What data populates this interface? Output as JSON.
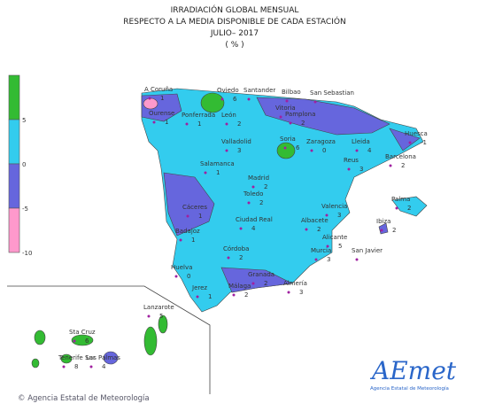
{
  "header": {
    "lines": [
      "IRRADIACIÓN GLOBAL MENSUAL",
      "RESPECTO A LA MEDIA DISPONIBLE DE CADA ESTACIÓN",
      "JULIO– 2017",
      "( % )"
    ]
  },
  "legend": {
    "ticks": [
      5,
      0,
      -5,
      -10
    ]
  },
  "stations": [
    {
      "name": "A Coruña",
      "value": 1
    },
    {
      "name": "Oviedo",
      "value": 6
    },
    {
      "name": "Santander"
    },
    {
      "name": "Bilbao"
    },
    {
      "name": "San Sebastian"
    },
    {
      "name": "Ourense",
      "value": 1
    },
    {
      "name": "Ponferrada",
      "value": 1
    },
    {
      "name": "León",
      "value": 2
    },
    {
      "name": "Vitoria"
    },
    {
      "name": "Pamplona",
      "value": 2
    },
    {
      "name": "Huesca",
      "value": -1
    },
    {
      "name": "Valladolid",
      "value": 3
    },
    {
      "name": "Soria",
      "value": 6
    },
    {
      "name": "Zaragoza",
      "value": 0
    },
    {
      "name": "Lleida",
      "value": 4
    },
    {
      "name": "Barcelona",
      "value": 2
    },
    {
      "name": "Reus",
      "value": 3
    },
    {
      "name": "Salamanca",
      "value": 1
    },
    {
      "name": "Madrid",
      "value": 2
    },
    {
      "name": "Toledo",
      "value": 2
    },
    {
      "name": "Cáceres",
      "value": 1
    },
    {
      "name": "Ciudad Real",
      "value": 4
    },
    {
      "name": "Albacete",
      "value": 2
    },
    {
      "name": "Valencia",
      "value": 3
    },
    {
      "name": "Palma",
      "value": 2
    },
    {
      "name": "Ibiza",
      "value": 2
    },
    {
      "name": "Badajoz",
      "value": 1
    },
    {
      "name": "Alicante",
      "value": 5
    },
    {
      "name": "Murcia",
      "value": 3
    },
    {
      "name": "San Javier"
    },
    {
      "name": "Córdoba",
      "value": 2
    },
    {
      "name": "Huelva",
      "value": 0
    },
    {
      "name": "Granada",
      "value": 2
    },
    {
      "name": "Almería",
      "value": 3
    },
    {
      "name": "Jerez",
      "value": 1
    },
    {
      "name": "Málaga",
      "value": 2
    },
    {
      "name": "Lanzarote",
      "value": 5
    },
    {
      "name": "Sta Cruz",
      "value": 6
    },
    {
      "name": "Tenerife Sur",
      "value": 8
    },
    {
      "name": "Las Palmas",
      "value": 4
    }
  ],
  "logo": {
    "name": "AEmet",
    "subtitle": "Agencia Estatal de Meteorología"
  },
  "footer": {
    "copyright": "© Agencia Estatal de Meteorología"
  }
}
